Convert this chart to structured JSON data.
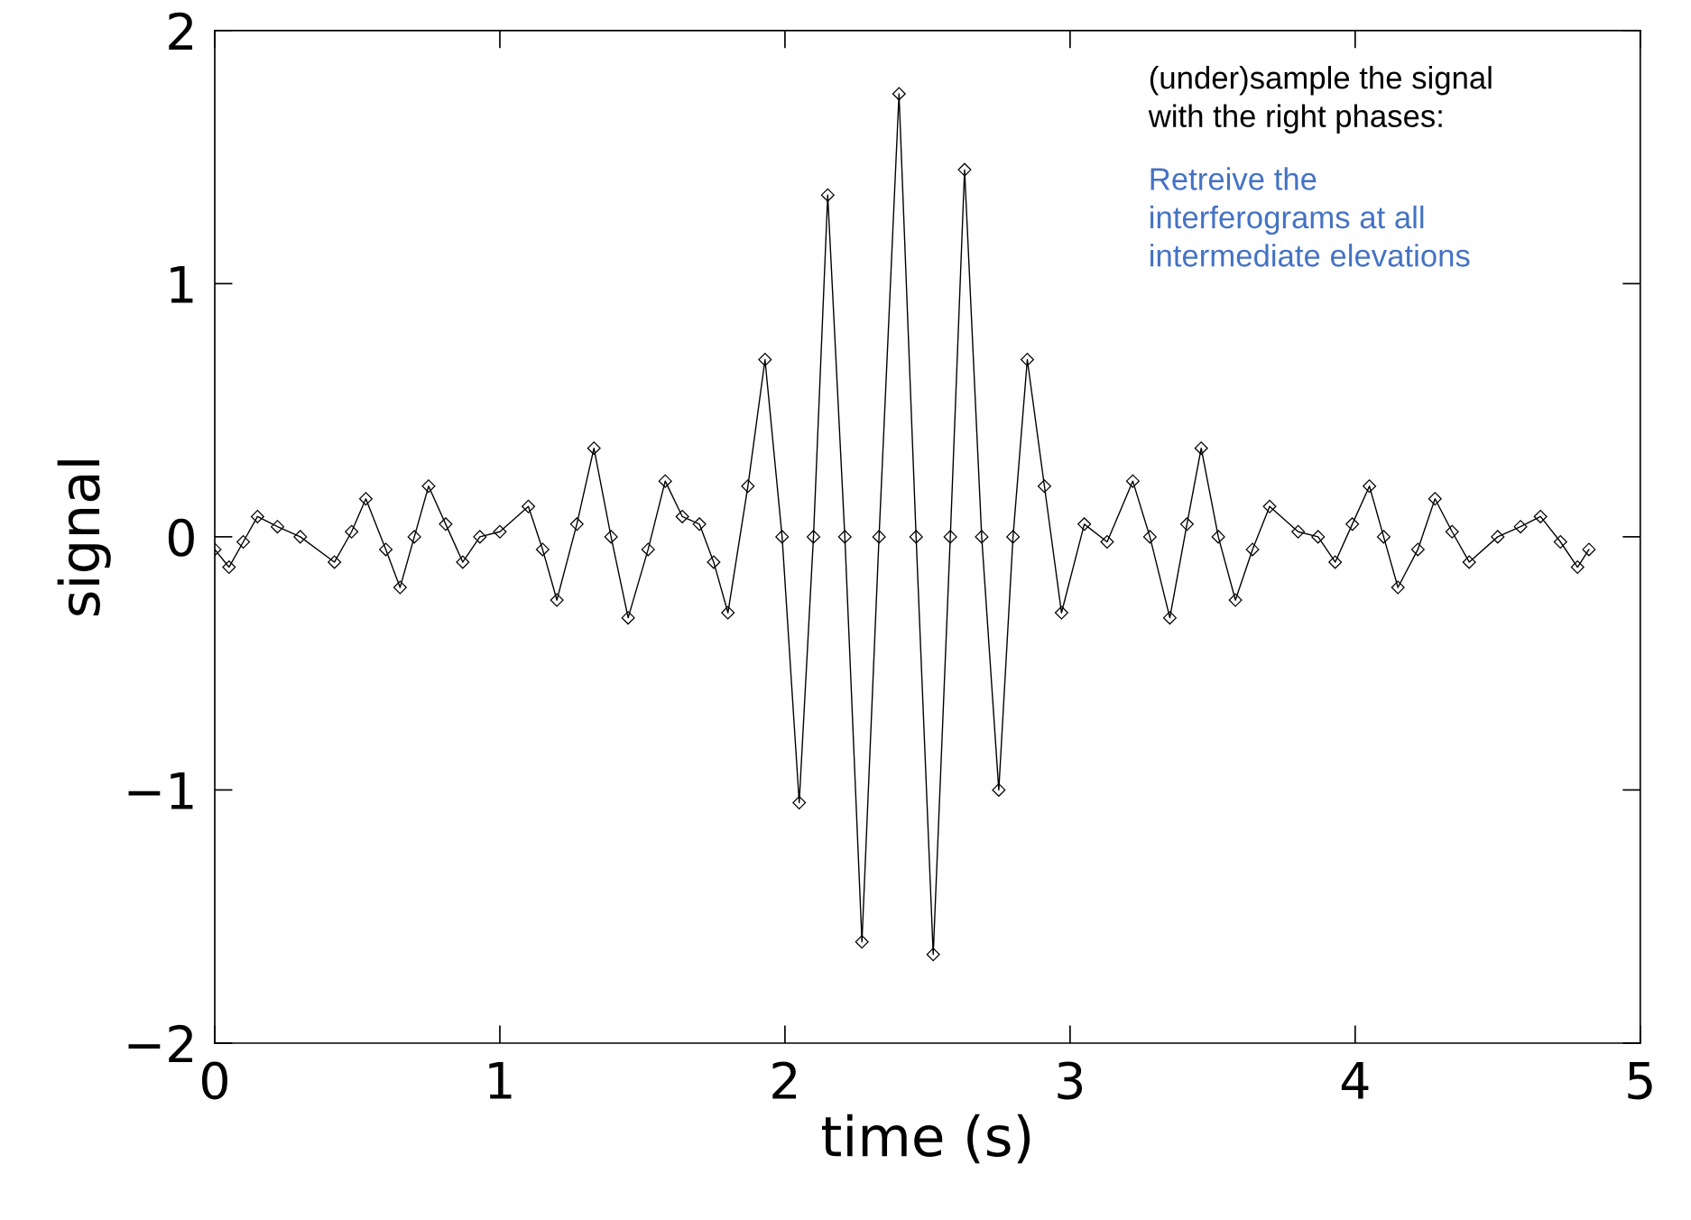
{
  "chart_data": {
    "type": "line",
    "xlabel": "time (s)",
    "ylabel": "signal",
    "annotations": [
      "(under)sample the signal\nwith the right phases:",
      "Retreive the\ninterferograms at all\nintermediate elevations"
    ],
    "x": [
      0,
      0.05,
      0.1,
      0.15,
      0.22,
      0.3,
      0.42,
      0.48,
      0.53,
      0.6,
      0.65,
      0.7,
      0.75,
      0.81,
      0.87,
      0.93,
      1.0,
      1.1,
      1.15,
      1.2,
      1.27,
      1.33,
      1.39,
      1.45,
      1.52,
      1.58,
      1.64,
      1.7,
      1.75,
      1.8,
      1.87,
      1.93,
      1.99,
      2.05,
      2.1,
      2.15,
      2.21,
      2.27,
      2.33,
      2.4,
      2.46,
      2.52,
      2.58,
      2.63,
      2.69,
      2.75,
      2.8,
      2.85,
      2.91,
      2.97,
      3.05,
      3.13,
      3.22,
      3.28,
      3.35,
      3.41,
      3.46,
      3.52,
      3.58,
      3.64,
      3.7,
      3.8,
      3.87,
      3.93,
      3.99,
      4.05,
      4.1,
      4.15,
      4.22,
      4.28,
      4.34,
      4.4,
      4.5,
      4.58,
      4.65,
      4.72,
      4.78,
      4.82
    ],
    "series": [
      {
        "color": "#000000",
        "values": [
          -0.05,
          -0.12,
          -0.02,
          0.08,
          0.04,
          0.0,
          -0.1,
          0.02,
          0.15,
          -0.05,
          -0.2,
          0.0,
          0.2,
          0.05,
          -0.1,
          0.0,
          0.02,
          0.12,
          -0.05,
          -0.25,
          0.05,
          0.35,
          0.0,
          -0.32,
          -0.05,
          0.22,
          0.08,
          0.05,
          -0.1,
          -0.3,
          0.2,
          0.7,
          0.0,
          -1.05,
          0.0,
          1.35,
          0.0,
          -1.6,
          0.0,
          1.75,
          0.0,
          -1.65,
          0.0,
          1.45,
          0.0,
          -1.0,
          0.0,
          0.7,
          0.2,
          -0.3,
          0.05,
          -0.02,
          0.22,
          0.0,
          -0.32,
          0.05,
          0.35,
          0.0,
          -0.25,
          -0.05,
          0.12,
          0.02,
          0.0,
          -0.1,
          0.05,
          0.2,
          0.0,
          -0.2,
          -0.05,
          0.15,
          0.02,
          -0.1,
          0.0,
          0.04,
          0.08,
          -0.02,
          -0.12,
          -0.05
        ]
      }
    ],
    "xlim": [
      0,
      5
    ],
    "ylim": [
      -2,
      2
    ],
    "xticks": [
      0,
      1,
      2,
      3,
      4,
      5
    ],
    "yticks": [
      -2,
      -1,
      0,
      1,
      2
    ],
    "marker": "diamond",
    "line_style": "solid",
    "grid": false,
    "legend": false
  }
}
